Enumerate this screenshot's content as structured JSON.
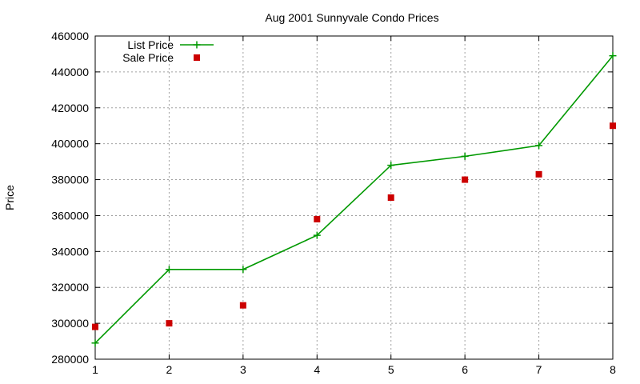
{
  "chart_data": {
    "type": "line",
    "title": "Aug 2001 Sunnyvale Condo Prices",
    "xlabel": "",
    "ylabel": "Price",
    "x": [
      1,
      2,
      3,
      4,
      5,
      6,
      7,
      8
    ],
    "xlim": [
      1,
      8
    ],
    "ylim": [
      280000,
      460000
    ],
    "x_ticks": [
      1,
      2,
      3,
      4,
      5,
      6,
      7,
      8
    ],
    "y_ticks": [
      280000,
      300000,
      320000,
      340000,
      360000,
      380000,
      400000,
      420000,
      440000,
      460000
    ],
    "grid": true,
    "legend_position": "top-left",
    "series": [
      {
        "name": "List Price",
        "style": "line-points",
        "marker": "plus",
        "color": "#009900",
        "values": [
          289000,
          330000,
          330000,
          349000,
          388000,
          393000,
          399000,
          449000
        ]
      },
      {
        "name": "Sale Price",
        "style": "points",
        "marker": "square",
        "color": "#cc0000",
        "values": [
          298000,
          300000,
          310000,
          358000,
          370000,
          380000,
          383000,
          410000
        ]
      }
    ]
  }
}
